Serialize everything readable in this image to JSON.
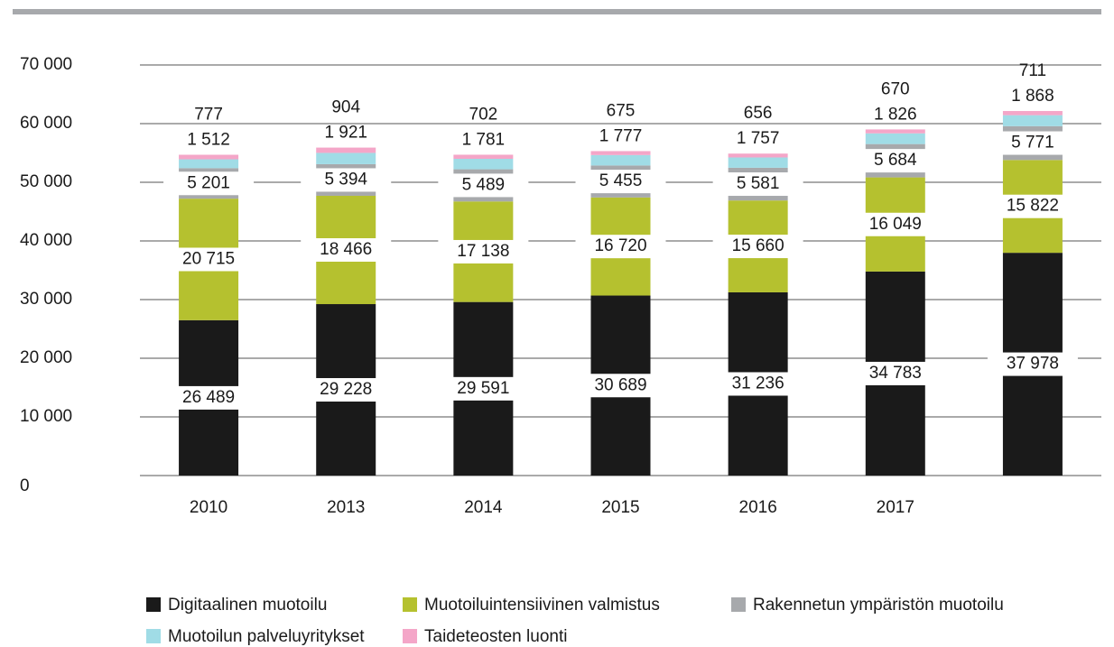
{
  "chart_data": {
    "type": "bar",
    "stacked": true,
    "categories": [
      "2010",
      "2013",
      "2014",
      "2015",
      "2016",
      "2017",
      null
    ],
    "series": [
      {
        "name": "Digitaalinen muotoilu",
        "color": "#1a1a1a",
        "values": [
          26489,
          29228,
          29591,
          30689,
          31236,
          34783,
          37978
        ],
        "value_labels": [
          "26 489",
          "29 228",
          "29 591",
          "30 689",
          "31 236",
          "34 783",
          "37 978"
        ]
      },
      {
        "name": "Muotoiluintensiivinen valmistus",
        "color": "#b5c12f",
        "values": [
          20715,
          18466,
          17138,
          16720,
          15660,
          16049,
          15822
        ],
        "value_labels": [
          "20 715",
          "18 466",
          "17 138",
          "16 720",
          "15 660",
          "16 049",
          "15 822"
        ]
      },
      {
        "name": "Rakennetun ympäristön muotoilu",
        "color": "#a7a9ac",
        "values": [
          5201,
          5394,
          5489,
          5455,
          5581,
          5684,
          5771
        ],
        "value_labels": [
          "5 201",
          "5 394",
          "5 489",
          "5 455",
          "5 581",
          "5 684",
          "5 771"
        ]
      },
      {
        "name": "Muotoilun palveluyritykset",
        "color": "#a0dce6",
        "values": [
          1512,
          1921,
          1781,
          1777,
          1757,
          1826,
          1868
        ],
        "value_labels": [
          "1 512",
          "1 921",
          "1 781",
          "1 777",
          "1 757",
          "1 826",
          "1 868"
        ]
      },
      {
        "name": "Taideteosten luonti",
        "color": "#f4a6c8",
        "values": [
          777,
          904,
          702,
          675,
          656,
          670,
          711
        ]
      }
    ],
    "ylim": [
      0,
      70000
    ],
    "yticks": [
      0,
      {
        "value": 10000,
        "label": "10 000"
      },
      {
        "value": 20000,
        "label": "20 000"
      },
      {
        "value": 30000,
        "label": "30 000"
      },
      {
        "value": 40000,
        "label": "40 000"
      },
      {
        "value": 50000,
        "label": "50 000"
      },
      {
        "value": 60000,
        "label": "60 000"
      },
      {
        "value": 70000,
        "label": "70 000"
      }
    ],
    "grid": true
  }
}
